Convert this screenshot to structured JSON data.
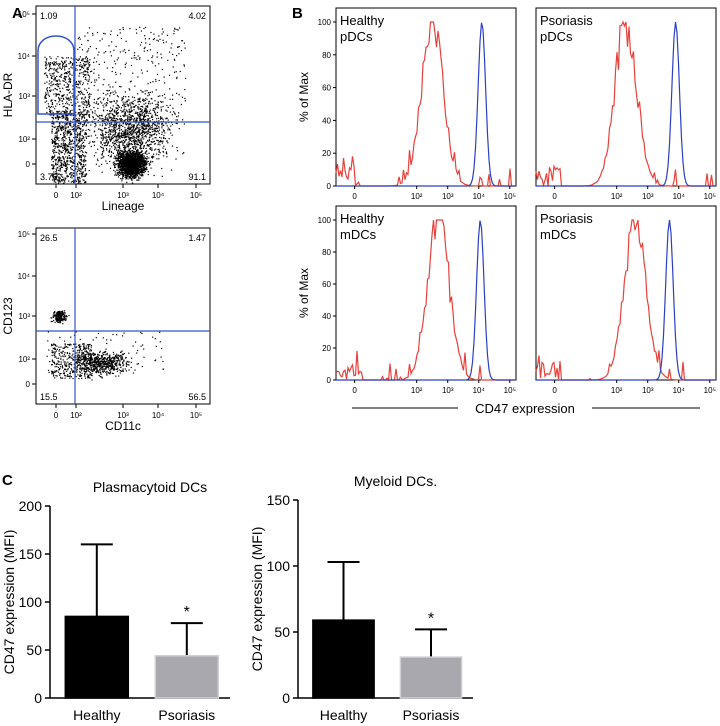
{
  "panel_labels": {
    "a": "A",
    "b": "B",
    "c": "C"
  },
  "chart_data": [
    {
      "type": "scatter",
      "id": "A1",
      "title": "",
      "xlabel": "Lineage",
      "ylabel": "HLA-DR",
      "x_ticks": [
        "0",
        "10²",
        "10³",
        "10⁴",
        "10⁵"
      ],
      "y_ticks": [
        "0",
        "10²",
        "10³",
        "10⁴",
        "10⁵"
      ],
      "quadrant_values": {
        "top_left": "1.09",
        "top_right": "4.02",
        "bottom_left": "3.75",
        "bottom_right": "91.1"
      },
      "gate": "HLA-DR+ Lineage- oval gate",
      "color": "#3355cc"
    },
    {
      "type": "scatter",
      "id": "A2",
      "title": "",
      "xlabel": "CD11c",
      "ylabel": "CD123",
      "x_ticks": [
        "0",
        "10²",
        "10³",
        "10⁴",
        "10⁵"
      ],
      "y_ticks": [
        "0",
        "10²",
        "10³",
        "10⁴",
        "10⁵"
      ],
      "quadrant_values": {
        "top_left": "26.5",
        "top_right": "1.47",
        "bottom_left": "15.5",
        "bottom_right": "56.5"
      },
      "color": "#3355cc"
    },
    {
      "type": "line",
      "id": "B_hist",
      "ylabel": "% of Max",
      "xlabel": "CD47 expression",
      "y_ticks": [
        "0",
        "20",
        "40",
        "60",
        "80",
        "100"
      ],
      "x_ticks": [
        "0",
        "10²",
        "10³",
        "10⁴",
        "10⁵"
      ],
      "panels": [
        {
          "label_line1": "Healthy",
          "label_line2": "pDCs",
          "red_peak_log": 2.5,
          "blue_peak_log": 4.1
        },
        {
          "label_line1": "Psoriasis",
          "label_line2": "pDCs",
          "red_peak_log": 2.3,
          "blue_peak_log": 3.9
        },
        {
          "label_line1": "Healthy",
          "label_line2": "mDCs",
          "red_peak_log": 2.7,
          "blue_peak_log": 4.05
        },
        {
          "label_line1": "Psoriasis",
          "label_line2": "mDCs",
          "red_peak_log": 2.6,
          "blue_peak_log": 3.7
        }
      ],
      "series_colors": {
        "isotype": "#e8413b",
        "cd47": "#2a3fc4"
      }
    },
    {
      "type": "bar",
      "id": "C1",
      "title": "Plasmacytoid DCs",
      "ylabel": "CD47 expression (MFI)",
      "categories": [
        "Healthy",
        "Psoriasis"
      ],
      "values": [
        85,
        44
      ],
      "errors": [
        75,
        34
      ],
      "ylim": [
        0,
        200
      ],
      "y_ticks": [
        "0",
        "50",
        "100",
        "150",
        "200"
      ],
      "significance": [
        "",
        "*"
      ],
      "colors": [
        "#000000",
        "#a8a8ae"
      ]
    },
    {
      "type": "bar",
      "id": "C2",
      "title": "Myeloid DCs.",
      "ylabel": "CD47 expression (MFI)",
      "categories": [
        "Healthy",
        "Psoriasis"
      ],
      "values": [
        59,
        31
      ],
      "errors": [
        44,
        21
      ],
      "ylim": [
        0,
        150
      ],
      "y_ticks": [
        "0",
        "50",
        "100",
        "150"
      ],
      "significance": [
        "",
        "*"
      ],
      "colors": [
        "#000000",
        "#a8a8ae"
      ]
    }
  ]
}
